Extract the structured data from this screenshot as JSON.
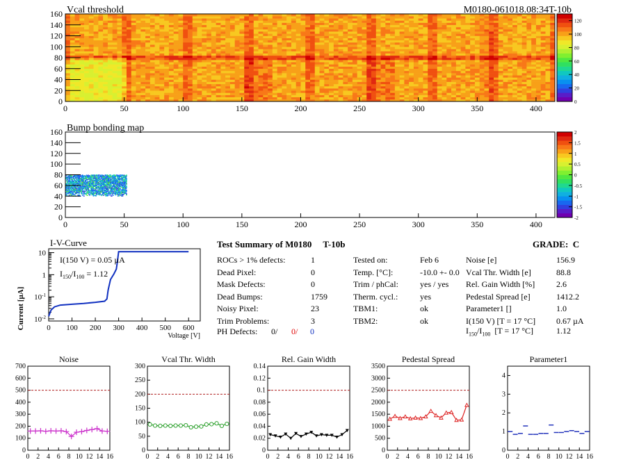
{
  "header": {
    "label": "M0180-061018.08:34T-10b"
  },
  "vcal": {
    "title": "Vcal threshold",
    "xticks": [
      "0",
      "50",
      "100",
      "150",
      "200",
      "250",
      "300",
      "350",
      "400"
    ],
    "yticks": [
      "0",
      "20",
      "40",
      "60",
      "80",
      "100",
      "120",
      "140",
      "160"
    ],
    "palette_ticks": [
      "0",
      "20",
      "40",
      "60",
      "80",
      "100",
      "120"
    ]
  },
  "bump": {
    "title": "Bump bonding map",
    "xticks": [
      "0",
      "50",
      "100",
      "150",
      "200",
      "250",
      "300",
      "350",
      "400"
    ],
    "yticks": [
      "0",
      "20",
      "40",
      "60",
      "80",
      "100",
      "120",
      "140",
      "160"
    ],
    "palette_ticks": [
      "-2",
      "-1.5",
      "-1",
      "-0.5",
      "0",
      "0.5",
      "1",
      "1.5",
      "2"
    ]
  },
  "iv": {
    "title": "I-V-Curve",
    "ylabel": "Current [µA]",
    "xlabel": "Voltage [V]",
    "xticks": [
      "0",
      "100",
      "200",
      "300",
      "400",
      "500",
      "600"
    ],
    "annot1": "I(150 V) = 0.05 µA",
    "annot2_pre": "I",
    "annot2_sub1": "150",
    "annot2_mid": "/I",
    "annot2_sub2": "100",
    "annot2_post": " =  1.12"
  },
  "chart_data": [
    {
      "type": "heatmap",
      "title": "Vcal threshold",
      "xlim": [
        0,
        416
      ],
      "ylim": [
        0,
        160
      ],
      "zlim": [
        0,
        130
      ],
      "palette": "rainbow",
      "note_regions": "ROC 0 lower region lower value (~85); rows near 80 and several column boundaries elevated (~115)"
    },
    {
      "type": "heatmap",
      "title": "Bump bonding map",
      "xlim": [
        0,
        416
      ],
      "ylim": [
        0,
        160
      ],
      "zlim": [
        -2,
        2
      ],
      "palette": "rainbow"
    },
    {
      "type": "line",
      "title": "I-V-Curve",
      "xlabel": "Voltage [V]",
      "ylabel": "Current [µA]",
      "yscale": "log",
      "xlim": [
        0,
        650
      ],
      "ylim": [
        0.008,
        15
      ],
      "x": [
        0,
        10,
        25,
        50,
        100,
        150,
        200,
        240,
        250,
        255,
        265,
        280,
        290,
        295,
        300,
        305,
        350,
        400,
        500,
        600
      ],
      "y": [
        0.013,
        0.025,
        0.035,
        0.042,
        0.046,
        0.05,
        0.056,
        0.063,
        0.08,
        0.2,
        0.6,
        1.1,
        1.8,
        4,
        11,
        11,
        11,
        11,
        11,
        11
      ]
    },
    {
      "type": "scatter",
      "title": "Noise",
      "xlim": [
        0,
        16
      ],
      "ylim": [
        0,
        700
      ],
      "limit_line": 500,
      "color": "#cc33cc",
      "yticks": [
        "0",
        "100",
        "200",
        "300",
        "400",
        "500",
        "600",
        "700"
      ],
      "xticks": [
        "0",
        "2",
        "4",
        "6",
        "8",
        "10",
        "12",
        "14",
        "16"
      ],
      "x": [
        0,
        1,
        2,
        3,
        4,
        5,
        6,
        7,
        8,
        9,
        10,
        11,
        12,
        13,
        14,
        15
      ],
      "y": [
        160,
        160,
        162,
        158,
        162,
        160,
        162,
        155,
        115,
        150,
        155,
        165,
        172,
        180,
        160,
        158
      ]
    },
    {
      "type": "scatter",
      "title": "Vcal Thr. Width",
      "xlim": [
        0,
        16
      ],
      "ylim": [
        0,
        300
      ],
      "limit_line": 200,
      "color": "#2ca02c",
      "yticks": [
        "0",
        "50",
        "100",
        "150",
        "200",
        "250",
        "300"
      ],
      "xticks": [
        "0",
        "2",
        "4",
        "6",
        "8",
        "10",
        "12",
        "14",
        "16"
      ],
      "x": [
        0,
        1,
        2,
        3,
        4,
        5,
        6,
        7,
        8,
        9,
        10,
        11,
        12,
        13,
        14,
        15
      ],
      "y": [
        92,
        88,
        87,
        88,
        87,
        88,
        88,
        89,
        82,
        84,
        85,
        92,
        93,
        96,
        87,
        94
      ]
    },
    {
      "type": "scatter",
      "title": "Rel. Gain Width",
      "xlim": [
        0,
        16
      ],
      "ylim": [
        0,
        0.14
      ],
      "limit_line": 0.1,
      "color": "#000000",
      "yticks": [
        "0",
        "0.02",
        "0.04",
        "0.06",
        "0.08",
        "0.1",
        "0.12",
        "0.14"
      ],
      "xticks": [
        "0",
        "2",
        "4",
        "6",
        "8",
        "10",
        "12",
        "14",
        "16"
      ],
      "x": [
        0,
        1,
        2,
        3,
        4,
        5,
        6,
        7,
        8,
        9,
        10,
        11,
        12,
        13,
        14,
        15
      ],
      "y": [
        0.026,
        0.024,
        0.022,
        0.027,
        0.02,
        0.028,
        0.023,
        0.027,
        0.03,
        0.024,
        0.026,
        0.025,
        0.025,
        0.022,
        0.026,
        0.033
      ]
    },
    {
      "type": "scatter",
      "title": "Pedestal Spread",
      "xlim": [
        0,
        16
      ],
      "ylim": [
        0,
        3500
      ],
      "limit_line": 2500,
      "color": "#dd2222",
      "yticks": [
        "0",
        "500",
        "1000",
        "1500",
        "2000",
        "2500",
        "3000",
        "3500"
      ],
      "xticks": [
        "0",
        "2",
        "4",
        "6",
        "8",
        "10",
        "12",
        "14",
        "16"
      ],
      "x": [
        0,
        1,
        2,
        3,
        4,
        5,
        6,
        7,
        8,
        9,
        10,
        11,
        12,
        13,
        14,
        15
      ],
      "y": [
        1300,
        1420,
        1330,
        1400,
        1320,
        1350,
        1330,
        1400,
        1630,
        1450,
        1350,
        1560,
        1580,
        1250,
        1270,
        1880
      ]
    },
    {
      "type": "scatter",
      "title": "Parameter1",
      "xlim": [
        0,
        16
      ],
      "ylim": [
        0,
        4.5
      ],
      "color": "#2233bb",
      "yticks": [
        "0",
        "1",
        "2",
        "3",
        "4"
      ],
      "xticks": [
        "0",
        "2",
        "4",
        "6",
        "8",
        "10",
        "12",
        "14",
        "16"
      ],
      "x": [
        0,
        1,
        2,
        3,
        4,
        5,
        6,
        7,
        8,
        9,
        10,
        11,
        12,
        13,
        14,
        15
      ],
      "y": [
        1.0,
        0.85,
        0.9,
        1.3,
        0.85,
        0.85,
        0.9,
        0.9,
        1.35,
        0.95,
        0.95,
        1.0,
        1.05,
        1.0,
        0.9,
        1.0
      ]
    }
  ],
  "summary": {
    "title": "Test Summary of M0180     T-10b",
    "grade": "GRADE:  C",
    "left": [
      {
        "k": "ROCs > 1% defects:",
        "v": "1"
      },
      {
        "k": "Dead Pixel:",
        "v": "0"
      },
      {
        "k": "Mask Defects:",
        "v": "0"
      },
      {
        "k": "Dead Bumps:",
        "v": "1759"
      },
      {
        "k": "Noisy Pixel:",
        "v": "23"
      },
      {
        "k": "Trim Problems:",
        "v": "3"
      }
    ],
    "ph": {
      "k": "PH Defects:",
      "v1": "0/",
      "v2": "0/",
      "v3": "0"
    },
    "middle": [
      {
        "k": "Tested on:",
        "v": "Feb 6"
      },
      {
        "k": "Temp. [°C]:",
        "v": "-10.0 +- 0.0"
      },
      {
        "k": "Trim / phCal:",
        "v": "yes / yes"
      },
      {
        "k": "Therm. cycl.:",
        "v": "yes"
      },
      {
        "k": "TBM1:",
        "v": "ok"
      },
      {
        "k": "TBM2:",
        "v": "ok"
      }
    ],
    "right": [
      {
        "k": "Noise [e]",
        "v": "156.9"
      },
      {
        "k": "Vcal Thr. Width [e]",
        "v": "88.8"
      },
      {
        "k": "Rel. Gain Width [%]",
        "v": "2.6"
      },
      {
        "k": "Pedestal Spread [e]",
        "v": "1412.2"
      },
      {
        "k": "Parameter1 []",
        "v": "1.0"
      },
      {
        "k": "I(150 V) [T = 17 °C]",
        "v": "0.67 µA"
      }
    ],
    "ratio": {
      "pre": "I",
      "sub1": "150",
      "mid": "/I",
      "sub2": "100",
      "post": "  [T = 17 °C]",
      "v": "1.12"
    }
  }
}
